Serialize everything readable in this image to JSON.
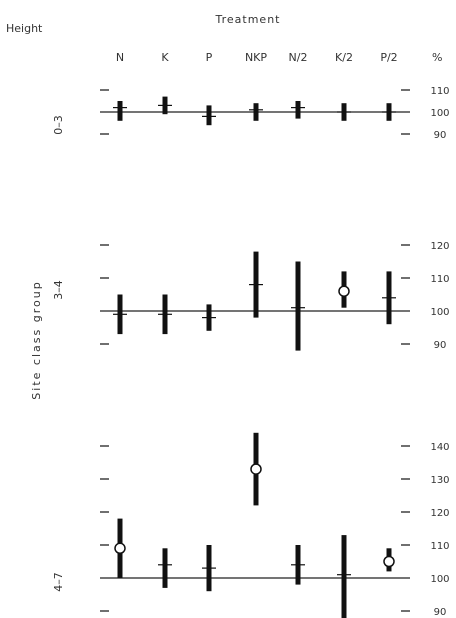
{
  "header": {
    "height_label": "Height",
    "treatment_label": "Treatment",
    "unit": "%",
    "side_label": "Site class group"
  },
  "treatments": [
    "N",
    "K",
    "P",
    "NKP",
    "N/2",
    "K/2",
    "P/2"
  ],
  "chart_data": [
    {
      "type": "range",
      "title": "0–3",
      "xlabel": "Treatment",
      "ylabel": "%",
      "ylim": [
        87,
        113
      ],
      "y_ticks": [
        90,
        100,
        110
      ],
      "reference_line": 100,
      "categories": [
        "N",
        "K",
        "P",
        "NKP",
        "N/2",
        "K/2",
        "P/2"
      ],
      "series": [
        {
          "values": [
            {
              "low": 96,
              "high": 105,
              "mid": 102,
              "significant": false
            },
            {
              "low": 99,
              "high": 107,
              "mid": 103,
              "significant": false
            },
            {
              "low": 94,
              "high": 103,
              "mid": 98,
              "significant": false
            },
            {
              "low": 96,
              "high": 104,
              "mid": 101,
              "significant": false
            },
            {
              "low": 97,
              "high": 105,
              "mid": 102,
              "significant": false
            },
            {
              "low": 96,
              "high": 104,
              "mid": 100,
              "significant": false
            },
            {
              "low": 96,
              "high": 104,
              "mid": 100,
              "significant": false
            }
          ]
        }
      ]
    },
    {
      "type": "range",
      "title": "3–4",
      "xlabel": "Treatment",
      "ylabel": "%",
      "ylim": [
        86,
        123
      ],
      "y_ticks": [
        90,
        100,
        110,
        120
      ],
      "reference_line": 100,
      "categories": [
        "N",
        "K",
        "P",
        "NKP",
        "N/2",
        "K/2",
        "P/2"
      ],
      "series": [
        {
          "values": [
            {
              "low": 93,
              "high": 105,
              "mid": 99,
              "significant": false
            },
            {
              "low": 93,
              "high": 105,
              "mid": 99,
              "significant": false
            },
            {
              "low": 94,
              "high": 102,
              "mid": 98,
              "significant": false
            },
            {
              "low": 98,
              "high": 118,
              "mid": 108,
              "significant": false
            },
            {
              "low": 88,
              "high": 115,
              "mid": 101,
              "significant": false
            },
            {
              "low": 101,
              "high": 112,
              "mid": 106,
              "significant": true
            },
            {
              "low": 96,
              "high": 112,
              "mid": 104,
              "significant": false
            }
          ]
        }
      ]
    },
    {
      "type": "range",
      "title": "4–7",
      "xlabel": "Treatment",
      "ylabel": "%",
      "ylim": [
        87,
        144
      ],
      "y_ticks": [
        90,
        100,
        110,
        120,
        130,
        140
      ],
      "reference_line": 100,
      "categories": [
        "N",
        "K",
        "P",
        "NKP",
        "N/2",
        "K/2",
        "P/2"
      ],
      "series": [
        {
          "values": [
            {
              "low": 100,
              "high": 118,
              "mid": 109,
              "significant": true
            },
            {
              "low": 97,
              "high": 109,
              "mid": 104,
              "significant": false
            },
            {
              "low": 96,
              "high": 110,
              "mid": 103,
              "significant": false
            },
            {
              "low": 122,
              "high": 144,
              "mid": 133,
              "significant": true
            },
            {
              "low": 98,
              "high": 110,
              "mid": 104,
              "significant": false
            },
            {
              "low": 87,
              "high": 113,
              "mid": 101,
              "significant": false
            },
            {
              "low": 102,
              "high": 109,
              "mid": 105,
              "significant": true
            }
          ]
        }
      ]
    }
  ]
}
